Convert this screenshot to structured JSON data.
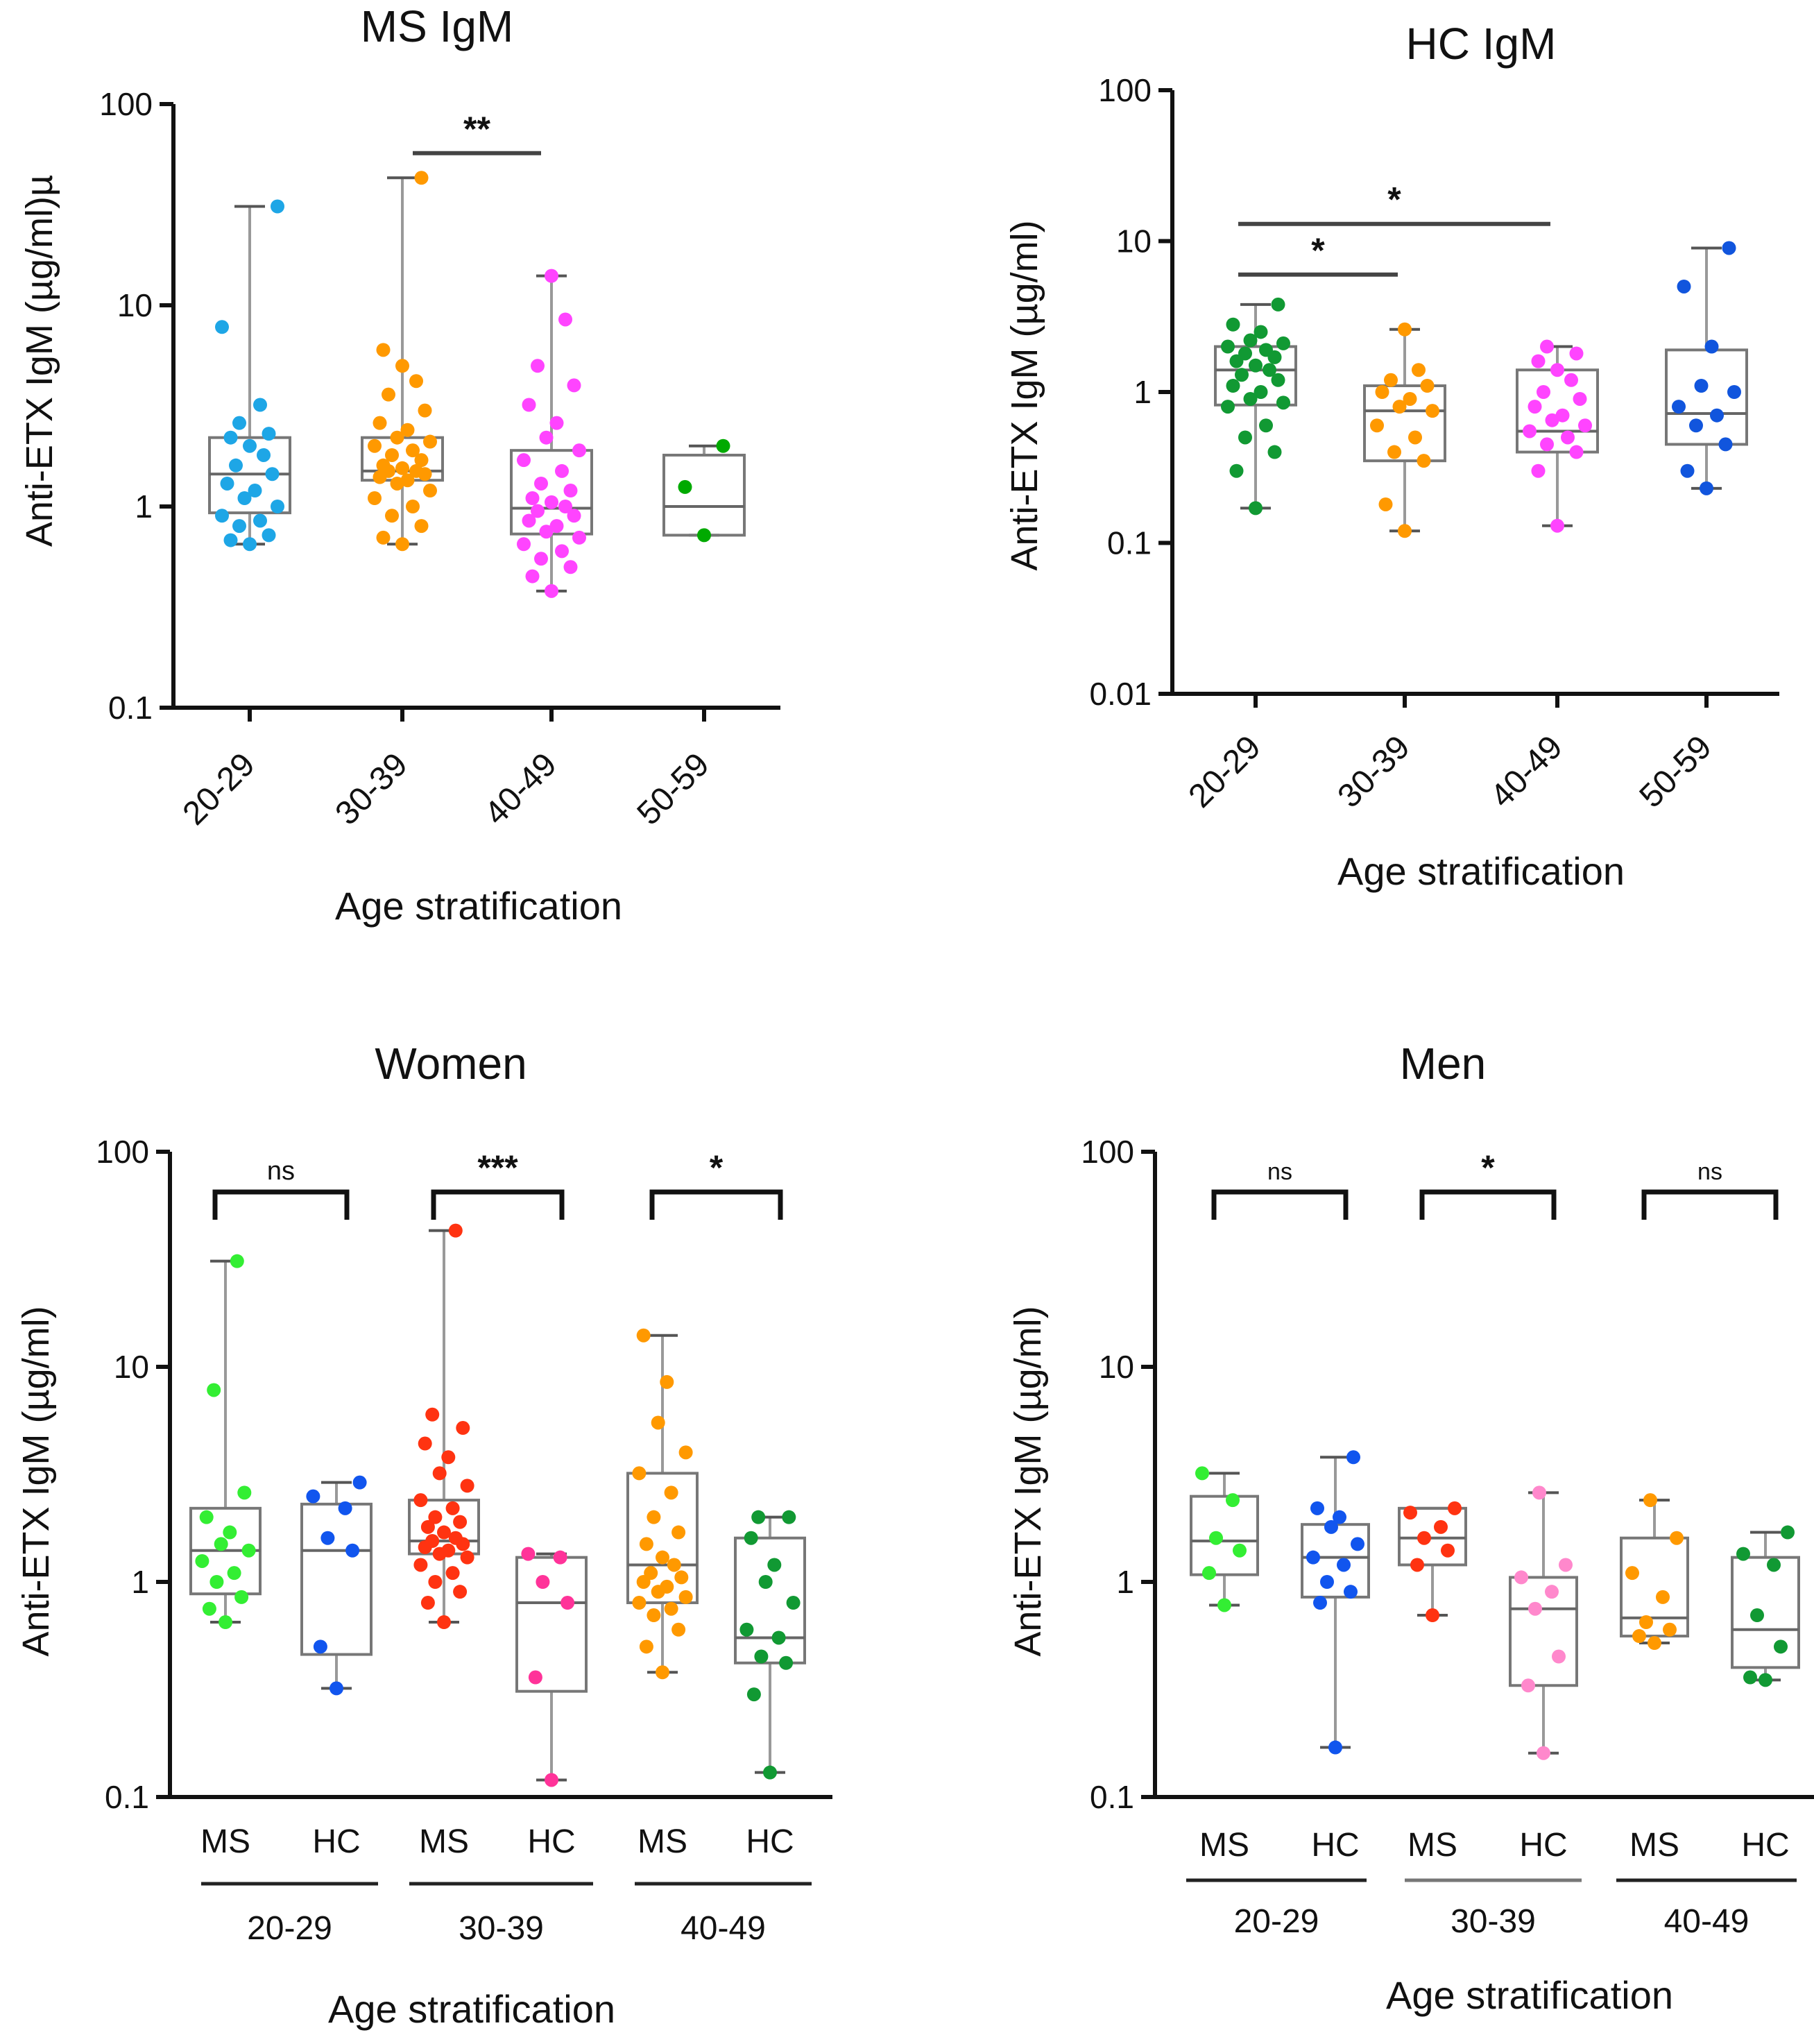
{
  "chart_data": [
    {
      "type": "boxplot",
      "title": "MS IgM",
      "ylabel": "Anti-ETX IgM (µg/ml)µ",
      "xlabel": "Age stratification",
      "yscale": "log",
      "ylim": [
        0.1,
        100
      ],
      "yticks": [
        "100",
        "10",
        "1",
        "0.1"
      ],
      "categories": [
        "20-29",
        "30-39",
        "40-49",
        "50-59"
      ],
      "groups": [
        {
          "label": "20-29",
          "color": "#1ea6e6",
          "min": 0.65,
          "q1": 0.93,
          "median": 1.45,
          "q3": 2.2,
          "max": 31,
          "points": [
            0.65,
            0.68,
            0.72,
            0.8,
            0.85,
            0.9,
            1.0,
            1.1,
            1.2,
            1.3,
            1.45,
            1.6,
            1.8,
            2.0,
            2.2,
            2.3,
            2.6,
            3.2,
            7.8,
            31
          ]
        },
        {
          "label": "30-39",
          "color": "#ff9900",
          "min": 0.65,
          "q1": 1.35,
          "median": 1.5,
          "q3": 2.2,
          "max": 43,
          "points": [
            0.65,
            0.7,
            0.8,
            0.9,
            1.0,
            1.1,
            1.2,
            1.3,
            1.35,
            1.4,
            1.45,
            1.5,
            1.5,
            1.55,
            1.6,
            1.7,
            1.8,
            1.9,
            2.0,
            2.1,
            2.2,
            2.4,
            2.6,
            3.0,
            3.6,
            4.2,
            5.0,
            6.0,
            43
          ]
        },
        {
          "label": "40-49",
          "color": "#ff44ff",
          "min": 0.38,
          "q1": 0.73,
          "median": 0.98,
          "q3": 1.9,
          "max": 14,
          "points": [
            0.38,
            0.45,
            0.5,
            0.55,
            0.6,
            0.65,
            0.7,
            0.75,
            0.8,
            0.85,
            0.9,
            0.95,
            1.0,
            1.05,
            1.1,
            1.2,
            1.3,
            1.5,
            1.7,
            1.9,
            2.2,
            2.6,
            3.2,
            4.0,
            5.0,
            8.5,
            14
          ]
        },
        {
          "label": "50-59",
          "color": "#00aa00",
          "min": 0.72,
          "q1": 0.72,
          "median": 1.0,
          "q3": 1.8,
          "max": 2.0,
          "points": [
            0.72,
            1.25,
            2.0
          ]
        }
      ],
      "annotations": [
        {
          "from": "30-39",
          "to": "40-49",
          "label": "**",
          "style": "line",
          "y": 57
        }
      ]
    },
    {
      "type": "boxplot",
      "title": "HC IgM",
      "ylabel": "Anti-ETX IgM (µg/ml)",
      "xlabel": "Age stratification",
      "yscale": "log",
      "ylim": [
        0.01,
        100
      ],
      "yticks": [
        "100",
        "10",
        "1",
        "0.1",
        "0.01"
      ],
      "categories": [
        "20-29",
        "30-39",
        "40-49",
        "50-59"
      ],
      "groups": [
        {
          "label": "20-29",
          "color": "#119933",
          "min": 0.17,
          "q1": 0.82,
          "median": 1.4,
          "q3": 2.0,
          "max": 3.8,
          "points": [
            0.17,
            0.3,
            0.4,
            0.5,
            0.6,
            0.8,
            0.85,
            0.9,
            1.0,
            1.1,
            1.2,
            1.3,
            1.4,
            1.5,
            1.6,
            1.7,
            1.8,
            1.9,
            2.0,
            2.1,
            2.2,
            2.5,
            2.8,
            3.8
          ]
        },
        {
          "label": "30-39",
          "color": "#ff9900",
          "min": 0.12,
          "q1": 0.35,
          "median": 0.75,
          "q3": 1.1,
          "max": 2.6,
          "points": [
            0.12,
            0.18,
            0.35,
            0.4,
            0.5,
            0.6,
            0.75,
            0.8,
            0.9,
            1.0,
            1.1,
            1.2,
            1.4,
            2.6
          ]
        },
        {
          "label": "40-49",
          "color": "#ff44ff",
          "min": 0.13,
          "q1": 0.4,
          "median": 0.55,
          "q3": 1.4,
          "max": 2.0,
          "points": [
            0.13,
            0.3,
            0.4,
            0.45,
            0.5,
            0.55,
            0.6,
            0.65,
            0.7,
            0.8,
            0.9,
            1.0,
            1.2,
            1.4,
            1.6,
            1.8,
            2.0
          ]
        },
        {
          "label": "50-59",
          "color": "#1155dd",
          "min": 0.23,
          "q1": 0.45,
          "median": 0.72,
          "q3": 1.9,
          "max": 9.0,
          "points": [
            0.23,
            0.3,
            0.45,
            0.6,
            0.7,
            0.8,
            1.0,
            1.1,
            2.0,
            5.0,
            9.0
          ]
        }
      ],
      "annotations": [
        {
          "from": "20-29",
          "to": "30-39",
          "label": "*",
          "style": "line",
          "y": 6.0
        },
        {
          "from": "20-29",
          "to": "40-49",
          "label": "*",
          "style": "line",
          "y": 13
        }
      ]
    },
    {
      "type": "boxplot",
      "title": "Women",
      "ylabel": "Anti-ETX IgM (µg/ml)",
      "xlabel": "Age stratification",
      "yscale": "log",
      "ylim": [
        0.1,
        100
      ],
      "yticks": [
        "100",
        "10",
        "1",
        "0.1"
      ],
      "categories": [
        "MS",
        "HC",
        "MS",
        "HC",
        "MS",
        "HC"
      ],
      "age_groups": [
        {
          "label": "20-29",
          "span": [
            0,
            1
          ]
        },
        {
          "label": "30-39",
          "span": [
            2,
            3
          ]
        },
        {
          "label": "40-49",
          "span": [
            4,
            5
          ]
        }
      ],
      "groups": [
        {
          "label": "MS",
          "color": "#33ee33",
          "min": 0.65,
          "q1": 0.88,
          "median": 1.4,
          "q3": 2.2,
          "max": 31,
          "points": [
            0.65,
            0.75,
            0.85,
            1.0,
            1.1,
            1.25,
            1.4,
            1.5,
            1.7,
            2.0,
            2.6,
            7.8,
            31
          ]
        },
        {
          "label": "HC",
          "color": "#1155ee",
          "min": 0.32,
          "q1": 0.46,
          "median": 1.4,
          "q3": 2.3,
          "max": 2.9,
          "points": [
            0.32,
            0.5,
            1.4,
            1.6,
            2.2,
            2.5,
            2.9
          ]
        },
        {
          "label": "MS",
          "color": "#ff3311",
          "min": 0.65,
          "q1": 1.35,
          "median": 1.55,
          "q3": 2.4,
          "max": 43,
          "points": [
            0.65,
            0.8,
            0.9,
            1.0,
            1.1,
            1.2,
            1.3,
            1.35,
            1.4,
            1.45,
            1.5,
            1.55,
            1.6,
            1.7,
            1.8,
            1.9,
            2.0,
            2.2,
            2.4,
            2.8,
            3.2,
            3.8,
            4.4,
            5.2,
            6.0,
            43
          ]
        },
        {
          "label": "HC",
          "color": "#ff3399",
          "min": 0.12,
          "q1": 0.31,
          "median": 0.8,
          "q3": 1.3,
          "max": 1.35,
          "points": [
            0.12,
            0.36,
            0.8,
            1.0,
            1.3,
            1.35
          ]
        },
        {
          "label": "MS",
          "color": "#ff9900",
          "min": 0.38,
          "q1": 0.8,
          "median": 1.2,
          "q3": 3.2,
          "max": 14,
          "points": [
            0.38,
            0.5,
            0.6,
            0.7,
            0.75,
            0.8,
            0.85,
            0.9,
            0.95,
            1.0,
            1.05,
            1.1,
            1.2,
            1.3,
            1.5,
            1.7,
            2.0,
            2.6,
            3.2,
            4.0,
            5.5,
            8.5,
            14
          ]
        },
        {
          "label": "HC",
          "color": "#119933",
          "min": 0.13,
          "q1": 0.42,
          "median": 0.55,
          "q3": 1.6,
          "max": 2.0,
          "points": [
            0.13,
            0.3,
            0.42,
            0.45,
            0.55,
            0.6,
            0.8,
            1.0,
            1.2,
            1.6,
            2.0,
            2.0
          ]
        }
      ],
      "annotations": [
        {
          "from": 0,
          "to": 1,
          "label": "ns",
          "style": "bracket",
          "y": 65
        },
        {
          "from": 2,
          "to": 3,
          "label": "***",
          "style": "bracket",
          "y": 65
        },
        {
          "from": 4,
          "to": 5,
          "label": "*",
          "style": "bracket",
          "y": 65
        }
      ]
    },
    {
      "type": "boxplot",
      "title": "Men",
      "ylabel": "Anti-ETX IgM (µg/ml)",
      "xlabel": "Age stratification",
      "yscale": "log",
      "ylim": [
        0.1,
        100
      ],
      "yticks": [
        "100",
        "10",
        "1",
        "0.1"
      ],
      "categories": [
        "MS",
        "HC",
        "MS",
        "HC",
        "MS",
        "HC"
      ],
      "age_groups": [
        {
          "label": "20-29",
          "span": [
            0,
            1
          ]
        },
        {
          "label": "30-39",
          "span": [
            2,
            3
          ]
        },
        {
          "label": "40-49",
          "span": [
            4,
            5
          ]
        }
      ],
      "groups": [
        {
          "label": "MS",
          "color": "#33ee33",
          "min": 0.78,
          "q1": 1.08,
          "median": 1.55,
          "q3": 2.5,
          "max": 3.2,
          "points": [
            0.78,
            1.1,
            1.4,
            1.6,
            2.4,
            3.2
          ]
        },
        {
          "label": "HC",
          "color": "#1155ee",
          "min": 0.17,
          "q1": 0.85,
          "median": 1.3,
          "q3": 1.85,
          "max": 3.8,
          "points": [
            0.17,
            0.8,
            0.9,
            1.0,
            1.2,
            1.3,
            1.5,
            1.8,
            2.0,
            2.2,
            3.8
          ]
        },
        {
          "label": "MS",
          "color": "#ff3311",
          "min": 0.7,
          "q1": 1.2,
          "median": 1.6,
          "q3": 2.2,
          "max": 2.2,
          "points": [
            0.7,
            1.2,
            1.4,
            1.6,
            1.8,
            2.1,
            2.2
          ]
        },
        {
          "label": "HC",
          "color": "#ff88cc",
          "min": 0.16,
          "q1": 0.33,
          "median": 0.75,
          "q3": 1.05,
          "max": 2.6,
          "points": [
            0.16,
            0.33,
            0.45,
            0.75,
            0.9,
            1.05,
            1.2,
            2.6
          ]
        },
        {
          "label": "MS",
          "color": "#ff9900",
          "min": 0.52,
          "q1": 0.56,
          "median": 0.68,
          "q3": 1.6,
          "max": 2.4,
          "points": [
            0.52,
            0.56,
            0.6,
            0.65,
            0.85,
            1.1,
            1.6,
            2.4
          ]
        },
        {
          "label": "HC",
          "color": "#119933",
          "min": 0.35,
          "q1": 0.4,
          "median": 0.6,
          "q3": 1.3,
          "max": 1.7,
          "points": [
            0.35,
            0.36,
            0.5,
            0.7,
            1.2,
            1.35,
            1.7
          ]
        }
      ],
      "annotations": [
        {
          "from": 0,
          "to": 1,
          "label": "ns",
          "style": "bracket",
          "y": 65
        },
        {
          "from": 2,
          "to": 3,
          "label": "*",
          "style": "bracket",
          "y": 65
        },
        {
          "from": 4,
          "to": 5,
          "label": "ns",
          "style": "bracket",
          "y": 65
        }
      ]
    }
  ]
}
